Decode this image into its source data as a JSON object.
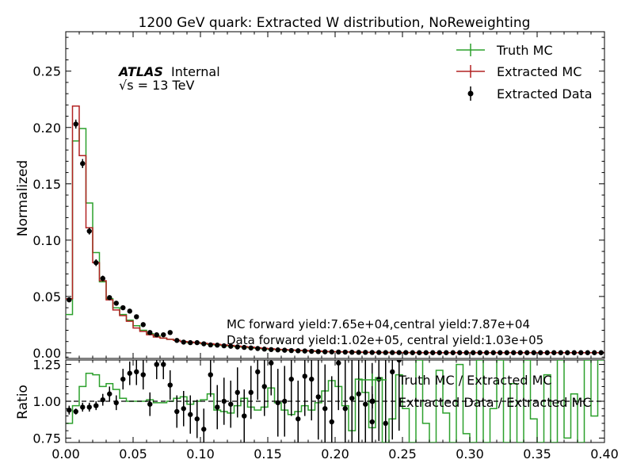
{
  "chart_data": {
    "type": "line",
    "title": "1200 GeV quark: Extracted W distribution, NoReweighting",
    "atlas_label": "ATLAS",
    "atlas_status": "Internal",
    "energy_label": "√s = 13 TeV",
    "x": [
      0.0,
      0.005,
      0.01,
      0.015,
      0.02,
      0.025,
      0.03,
      0.035,
      0.04,
      0.045,
      0.05,
      0.055,
      0.06,
      0.065,
      0.07,
      0.075,
      0.08,
      0.085,
      0.09,
      0.095,
      0.1,
      0.105,
      0.11,
      0.115,
      0.12,
      0.125,
      0.13,
      0.135,
      0.14,
      0.145,
      0.15,
      0.155,
      0.16,
      0.165,
      0.17,
      0.175,
      0.18,
      0.185,
      0.19,
      0.195,
      0.2,
      0.205,
      0.21,
      0.215,
      0.22,
      0.225,
      0.23,
      0.235,
      0.24,
      0.245,
      0.25,
      0.255,
      0.26,
      0.265,
      0.27,
      0.275,
      0.28,
      0.285,
      0.29,
      0.295,
      0.3,
      0.305,
      0.31,
      0.315,
      0.32,
      0.325,
      0.33,
      0.335,
      0.34,
      0.345,
      0.35,
      0.355,
      0.36,
      0.365,
      0.37,
      0.375,
      0.38,
      0.385,
      0.39,
      0.395,
      0.4
    ],
    "xlabel": "",
    "xlim": [
      0,
      0.4
    ],
    "xticks": [
      "0.00",
      "0.05",
      "0.10",
      "0.15",
      "0.20",
      "0.25",
      "0.30",
      "0.35",
      "0.40"
    ],
    "main_panel": {
      "ylabel": "Normalized",
      "ylim": [
        -0.005,
        0.285
      ],
      "yticks": [
        "0.00",
        "0.05",
        "0.10",
        "0.15",
        "0.20",
        "0.25"
      ],
      "series": [
        {
          "name": "Truth MC",
          "color": "#2ca02c",
          "values": [
            0.034,
            0.188,
            0.199,
            0.133,
            0.089,
            0.063,
            0.048,
            0.04,
            0.034,
            0.029,
            0.024,
            0.02,
            0.017,
            0.015,
            0.013,
            0.012,
            0.011,
            0.01,
            0.009,
            0.009,
            0.008,
            0.0075,
            0.007,
            0.0065,
            0.006,
            0.0055,
            0.005,
            0.0045,
            0.004,
            0.0035,
            0.003,
            0.0028,
            0.0025,
            0.0022,
            0.002,
            0.0018,
            0.0015,
            0.0012,
            0.001,
            0.0009,
            0.0008,
            0.0007,
            0.0006,
            0.0005,
            0.0004,
            0.0004,
            0.0003,
            0.0003,
            0.0002,
            0.0002,
            0.0002,
            0.0001,
            0.0001,
            0.0001,
            0.0001,
            0.0001,
            0.0001,
            0.0001,
            0.0001,
            0.0001,
            0.0001,
            0.0001,
            0.0001,
            0.0001,
            0.0001,
            0.0001,
            0.0001,
            0.0001,
            0.0001,
            0.0001,
            0.0001,
            0.0001,
            0.0001,
            0.0001,
            0.0001,
            0.0001,
            0.0001,
            0.0001,
            0.0001,
            0.0001
          ]
        },
        {
          "name": "Extracted MC",
          "color": "#b22222",
          "values": [
            0.048,
            0.219,
            0.175,
            0.111,
            0.08,
            0.064,
            0.047,
            0.038,
            0.033,
            0.028,
            0.022,
            0.019,
            0.016,
            0.014,
            0.013,
            0.012,
            0.011,
            0.01,
            0.0095,
            0.009,
            0.0085,
            0.008,
            0.0075,
            0.007,
            0.0065,
            0.006,
            0.0055,
            0.005,
            0.0045,
            0.004,
            0.0035,
            0.003,
            0.0028,
            0.0025,
            0.0022,
            0.002,
            0.0017,
            0.0015,
            0.0012,
            0.001,
            0.0009,
            0.0008,
            0.0007,
            0.0006,
            0.0005,
            0.0004,
            0.0004,
            0.0003,
            0.0003,
            0.0002,
            0.0002,
            0.0002,
            0.0002,
            0.0001,
            0.0001,
            0.0001,
            0.0001,
            0.0001,
            0.0001,
            0.0001,
            0.0001,
            0.0001,
            0.0001,
            0.0001,
            0.0001,
            0.0001,
            0.0001,
            0.0001,
            0.0001,
            0.0001,
            0.0001,
            0.0001,
            0.0001,
            0.0001,
            0.0001,
            0.0001,
            0.0001,
            0.0001,
            0.0001,
            0.0001
          ]
        }
      ],
      "points": {
        "name": "Extracted Data",
        "color": "#000000",
        "x": [
          0.0025,
          0.0075,
          0.0125,
          0.0175,
          0.0225,
          0.0275,
          0.0325,
          0.0375,
          0.0425,
          0.0475,
          0.0525,
          0.0575,
          0.0625,
          0.0675,
          0.0725,
          0.0775,
          0.0825,
          0.0875,
          0.0925,
          0.0975,
          0.1025,
          0.1075,
          0.1125,
          0.1175,
          0.1225,
          0.1275,
          0.1325,
          0.1375,
          0.1425,
          0.1475,
          0.1525,
          0.1575,
          0.1625,
          0.1675,
          0.1725,
          0.1775,
          0.1825,
          0.1875,
          0.1925,
          0.1975,
          0.2025,
          0.2075,
          0.2125,
          0.2175,
          0.2225,
          0.2275,
          0.2325,
          0.2375,
          0.2425,
          0.2475,
          0.2525,
          0.2575,
          0.2625,
          0.2675,
          0.2725,
          0.2775,
          0.2825,
          0.2875,
          0.2925,
          0.2975,
          0.3025,
          0.3075,
          0.3125,
          0.3175,
          0.3225,
          0.3275,
          0.3325,
          0.3375,
          0.3425,
          0.3475,
          0.3525,
          0.3575,
          0.3625,
          0.3675,
          0.3725,
          0.3775,
          0.3825,
          0.3875,
          0.3925,
          0.3975
        ],
        "y": [
          0.047,
          0.203,
          0.168,
          0.108,
          0.08,
          0.066,
          0.049,
          0.044,
          0.04,
          0.037,
          0.032,
          0.025,
          0.018,
          0.016,
          0.016,
          0.018,
          0.011,
          0.0095,
          0.009,
          0.009,
          0.008,
          0.007,
          0.0068,
          0.0062,
          0.0058,
          0.0052,
          0.0048,
          0.0043,
          0.0038,
          0.0033,
          0.0029,
          0.0026,
          0.0023,
          0.002,
          0.0018,
          0.0016,
          0.0013,
          0.0011,
          0.0009,
          0.0008,
          0.0007,
          0.0006,
          0.0005,
          0.0004,
          0.0004,
          0.0003,
          0.0003,
          0.0002,
          0.0002,
          0.0002,
          0.0002,
          0.0001,
          0.0001,
          0.0001,
          0.0001,
          0.0001,
          0.0001,
          0.0001,
          0.0001,
          0.0001,
          0.0001,
          0.0001,
          0.0001,
          0.0001,
          0.0001,
          0.0001,
          0.0001,
          0.0001,
          0.0001,
          0.0001,
          0.0001,
          0.0001,
          0.0001,
          0.0001,
          0.0001,
          0.0001,
          0.0001,
          0.0001,
          0.0001,
          0.0001
        ],
        "yerr": [
          0.002,
          0.004,
          0.004,
          0.003,
          0.003,
          0.0025,
          0.002,
          0.002,
          0.002,
          0.002,
          0.0015,
          0.0015,
          0.0012,
          0.0012,
          0.0012,
          0.0012,
          0.001,
          0.001,
          0.001,
          0.001,
          0.0008,
          0.0008,
          0.0007,
          0.0007,
          0.0006,
          0.0006,
          0.0006,
          0.0005,
          0.0005,
          0.0005,
          0.0004,
          0.0004,
          0.0004,
          0.0004,
          0.0003,
          0.0003,
          0.0003,
          0.0003,
          0.0003,
          0.0003,
          0.0002,
          0.0002,
          0.0002,
          0.0002,
          0.0002,
          0.0002,
          0.0002,
          0.0002,
          0.0002,
          0.0001,
          0.0001,
          0.0001,
          0.0001,
          0.0001,
          0.0001,
          0.0001,
          0.0001,
          0.0001,
          0.0001,
          0.0001,
          0.0001,
          0.0001,
          0.0001,
          0.0001,
          0.0001,
          0.0001,
          0.0001,
          0.0001,
          0.0001,
          0.0001,
          0.0001,
          0.0001,
          0.0001,
          0.0001,
          0.0001,
          0.0001,
          0.0001,
          0.0001,
          0.0001,
          0.0001
        ]
      },
      "legend": {
        "position": "top-right",
        "entries": [
          "Truth MC",
          "Extracted MC",
          "Extracted Data"
        ]
      },
      "annotations": [
        "MC forward yield:7.65e+04,central yield:7.87e+04",
        "Data forward yield:1.02e+05, central yield:1.03e+05"
      ]
    },
    "ratio_panel": {
      "ylabel": "Ratio",
      "ylim": [
        0.72,
        1.28
      ],
      "yticks": [
        "0.75",
        "1.00",
        "1.25"
      ],
      "reference_line": 1.0,
      "series": [
        {
          "name": "Truth MC / Extracted MC",
          "color": "#2ca02c",
          "values": [
            0.85,
            0.97,
            1.1,
            1.19,
            1.18,
            1.1,
            1.12,
            1.08,
            1.02,
            1.0,
            1.0,
            1.0,
            1.01,
            0.99,
            0.99,
            1.0,
            1.02,
            1.03,
            0.98,
            1.0,
            1.01,
            1.05,
            0.94,
            0.93,
            0.92,
            0.97,
            1.02,
            0.96,
            0.94,
            0.96,
            1.09,
            0.99,
            0.94,
            0.91,
            0.93,
            0.97,
            0.94,
            0.99,
            1.07,
            1.14,
            1.1,
            0.97,
            0.8,
            1.15,
            1.06,
            0.82,
            1.16,
            0.72,
            0.88,
            1.18,
            0.95,
            0.72,
            1.28,
            0.85,
            0.72,
            1.21,
            0.92,
            0.72,
            1.25,
            0.78,
            0.72,
            1.28,
            0.72,
            0.95,
            1.28,
            0.72,
            1.12,
            0.72,
            1.28,
            0.88,
            0.72,
            1.18,
            0.72,
            1.28,
            0.75,
            1.05,
            0.72,
            1.28,
            0.9,
            1.28
          ]
        }
      ],
      "points": {
        "name": "Extracted Data / Extracted MC",
        "color": "#000000",
        "x": [
          0.0025,
          0.0075,
          0.0125,
          0.0175,
          0.0225,
          0.0275,
          0.0325,
          0.0375,
          0.0425,
          0.0475,
          0.0525,
          0.0575,
          0.0625,
          0.0675,
          0.0725,
          0.0775,
          0.0825,
          0.0875,
          0.0925,
          0.0975,
          0.1025,
          0.1075,
          0.1125,
          0.1175,
          0.1225,
          0.1275,
          0.1325,
          0.1375,
          0.1425,
          0.1475,
          0.1525,
          0.1575,
          0.1625,
          0.1675,
          0.1725,
          0.1775,
          0.1825,
          0.1875,
          0.1925,
          0.1975,
          0.2025,
          0.2075,
          0.2125,
          0.2175,
          0.2225,
          0.2275,
          0.2325,
          0.2375,
          0.2425,
          0.2475
        ],
        "y": [
          0.94,
          0.93,
          0.96,
          0.96,
          0.97,
          1.01,
          1.05,
          0.99,
          1.15,
          1.19,
          1.2,
          1.18,
          0.98,
          1.25,
          1.25,
          1.11,
          0.93,
          0.95,
          0.91,
          0.88,
          0.81,
          1.18,
          0.96,
          1.0,
          0.98,
          1.06,
          0.9,
          1.06,
          1.2,
          1.1,
          1.26,
          0.99,
          1.0,
          1.15,
          0.88,
          1.17,
          1.15,
          1.03,
          0.95,
          0.86,
          1.26,
          0.95,
          1.02,
          1.05,
          0.98,
          0.86,
          1.15,
          0.85,
          1.2,
          1.28
        ],
        "yerr": [
          0.03,
          0.02,
          0.03,
          0.03,
          0.03,
          0.04,
          0.05,
          0.05,
          0.07,
          0.08,
          0.09,
          0.1,
          0.08,
          0.1,
          0.1,
          0.1,
          0.11,
          0.12,
          0.13,
          0.13,
          0.14,
          0.15,
          0.15,
          0.16,
          0.16,
          0.17,
          0.18,
          0.18,
          0.19,
          0.2,
          0.22,
          0.23,
          0.24,
          0.25,
          0.26,
          0.27,
          0.28,
          0.29,
          0.3,
          0.31,
          0.32,
          0.33,
          0.34,
          0.36,
          0.38,
          0.4,
          0.42,
          0.44,
          0.46,
          0.48
        ]
      },
      "legend": {
        "position": "top-right",
        "entries": [
          "Truth MC / Extracted MC",
          "Extracted Data / Extracted MC"
        ]
      }
    },
    "grid": false
  }
}
